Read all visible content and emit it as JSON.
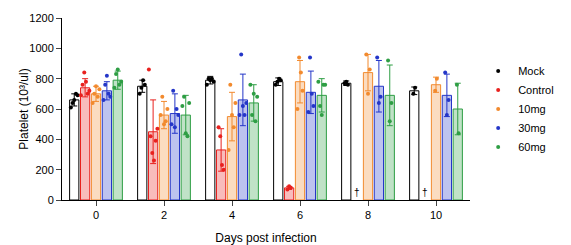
{
  "chart_data": {
    "type": "bar",
    "x_label": "Days post infection",
    "y_label": "Platelet (10³/ul)",
    "categories": [
      "0",
      "2",
      "4",
      "6",
      "8",
      "10"
    ],
    "ylim": [
      0,
      1200
    ],
    "yticks": [
      0,
      200,
      400,
      600,
      800,
      1000,
      1200
    ],
    "grid": false,
    "legend": "right",
    "series": [
      {
        "name": "Mock",
        "color": "#000000",
        "values": [
          660,
          750,
          790,
          780,
          770,
          720
        ],
        "errors": [
          40,
          40,
          25,
          25,
          15,
          25
        ],
        "points": [
          [
            610,
            640,
            660,
            700,
            690
          ],
          [
            700,
            740,
            790,
            760
          ],
          [
            760,
            800,
            790,
            800,
            780
          ],
          [
            760,
            780,
            800,
            790
          ],
          [
            770,
            780,
            760
          ],
          [
            700,
            740
          ]
        ]
      },
      {
        "name": "Control",
        "color": "#e8211e",
        "values": [
          740,
          450,
          330,
          80,
          null,
          null
        ],
        "errors": [
          60,
          210,
          140,
          10,
          null,
          null
        ],
        "points": [
          [
            690,
            760,
            840,
            780,
            700,
            720
          ],
          [
            860,
            420,
            310,
            260,
            390,
            470
          ],
          [
            480,
            420,
            230,
            200
          ],
          [
            70,
            90,
            80
          ],
          [],
          []
        ]
      },
      {
        "name": "10mg",
        "color": "#f28a2e",
        "values": [
          700,
          560,
          550,
          780,
          840,
          760
        ],
        "errors": [
          50,
          90,
          160,
          140,
          120,
          50
        ],
        "points": [
          [
            640,
            700,
            750,
            680,
            730
          ],
          [
            560,
            680,
            500,
            520,
            600
          ],
          [
            330,
            760,
            560,
            480,
            640
          ],
          [
            600,
            940,
            840,
            720
          ],
          [
            960,
            700,
            860
          ],
          [
            720,
            800
          ]
        ]
      },
      {
        "name": "30mg",
        "color": "#2436c8",
        "values": [
          720,
          570,
          660,
          710,
          750,
          690
        ],
        "errors": [
          60,
          130,
          170,
          140,
          170,
          140
        ],
        "points": [
          [
            660,
            760,
            820,
            700,
            680
          ],
          [
            500,
            720,
            480,
            600,
            560
          ],
          [
            560,
            960,
            620,
            560,
            640
          ],
          [
            580,
            940,
            700,
            620
          ],
          [
            940,
            640,
            680
          ],
          [
            840,
            560,
            660
          ]
        ]
      },
      {
        "name": "60mg",
        "color": "#2e9e44",
        "values": [
          790,
          560,
          640,
          690,
          690,
          600
        ],
        "errors": [
          60,
          130,
          120,
          110,
          200,
          170
        ],
        "points": [
          [
            740,
            830,
            860,
            760,
            780
          ],
          [
            620,
            680,
            440,
            420,
            640
          ],
          [
            760,
            560,
            700,
            520,
            680
          ],
          [
            780,
            620,
            560,
            760,
            760
          ],
          [
            920,
            520,
            640
          ],
          [
            760,
            440
          ]
        ]
      }
    ],
    "annotations": [
      {
        "text": "†",
        "category": "8",
        "series": "Control",
        "y": 0
      },
      {
        "text": "†",
        "category": "10",
        "series": "Control",
        "y": 0
      }
    ]
  }
}
